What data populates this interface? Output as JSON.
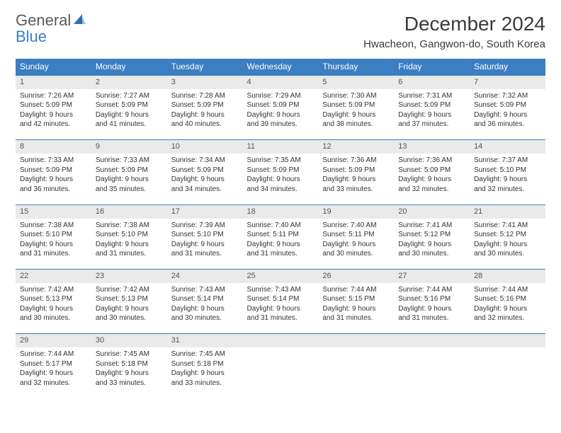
{
  "brand": {
    "text_general": "General",
    "text_blue": "Blue",
    "icon_color": "#2e6db0"
  },
  "header": {
    "month_title": "December 2024",
    "location": "Hwacheon, Gangwon-do, South Korea"
  },
  "style": {
    "header_bg": "#3b7ec2",
    "header_text": "#ffffff",
    "daynum_bg": "#e9eaea",
    "border_color": "#3b7ec2",
    "body_text": "#333333",
    "font_size_body": 10,
    "font_size_daynum": 11,
    "font_size_header": 12
  },
  "weekdays": [
    "Sunday",
    "Monday",
    "Tuesday",
    "Wednesday",
    "Thursday",
    "Friday",
    "Saturday"
  ],
  "days": {
    "1": {
      "sunrise": "7:26 AM",
      "sunset": "5:09 PM",
      "daylight": "9 hours and 42 minutes."
    },
    "2": {
      "sunrise": "7:27 AM",
      "sunset": "5:09 PM",
      "daylight": "9 hours and 41 minutes."
    },
    "3": {
      "sunrise": "7:28 AM",
      "sunset": "5:09 PM",
      "daylight": "9 hours and 40 minutes."
    },
    "4": {
      "sunrise": "7:29 AM",
      "sunset": "5:09 PM",
      "daylight": "9 hours and 39 minutes."
    },
    "5": {
      "sunrise": "7:30 AM",
      "sunset": "5:09 PM",
      "daylight": "9 hours and 38 minutes."
    },
    "6": {
      "sunrise": "7:31 AM",
      "sunset": "5:09 PM",
      "daylight": "9 hours and 37 minutes."
    },
    "7": {
      "sunrise": "7:32 AM",
      "sunset": "5:09 PM",
      "daylight": "9 hours and 36 minutes."
    },
    "8": {
      "sunrise": "7:33 AM",
      "sunset": "5:09 PM",
      "daylight": "9 hours and 36 minutes."
    },
    "9": {
      "sunrise": "7:33 AM",
      "sunset": "5:09 PM",
      "daylight": "9 hours and 35 minutes."
    },
    "10": {
      "sunrise": "7:34 AM",
      "sunset": "5:09 PM",
      "daylight": "9 hours and 34 minutes."
    },
    "11": {
      "sunrise": "7:35 AM",
      "sunset": "5:09 PM",
      "daylight": "9 hours and 34 minutes."
    },
    "12": {
      "sunrise": "7:36 AM",
      "sunset": "5:09 PM",
      "daylight": "9 hours and 33 minutes."
    },
    "13": {
      "sunrise": "7:36 AM",
      "sunset": "5:09 PM",
      "daylight": "9 hours and 32 minutes."
    },
    "14": {
      "sunrise": "7:37 AM",
      "sunset": "5:10 PM",
      "daylight": "9 hours and 32 minutes."
    },
    "15": {
      "sunrise": "7:38 AM",
      "sunset": "5:10 PM",
      "daylight": "9 hours and 31 minutes."
    },
    "16": {
      "sunrise": "7:38 AM",
      "sunset": "5:10 PM",
      "daylight": "9 hours and 31 minutes."
    },
    "17": {
      "sunrise": "7:39 AM",
      "sunset": "5:10 PM",
      "daylight": "9 hours and 31 minutes."
    },
    "18": {
      "sunrise": "7:40 AM",
      "sunset": "5:11 PM",
      "daylight": "9 hours and 31 minutes."
    },
    "19": {
      "sunrise": "7:40 AM",
      "sunset": "5:11 PM",
      "daylight": "9 hours and 30 minutes."
    },
    "20": {
      "sunrise": "7:41 AM",
      "sunset": "5:12 PM",
      "daylight": "9 hours and 30 minutes."
    },
    "21": {
      "sunrise": "7:41 AM",
      "sunset": "5:12 PM",
      "daylight": "9 hours and 30 minutes."
    },
    "22": {
      "sunrise": "7:42 AM",
      "sunset": "5:13 PM",
      "daylight": "9 hours and 30 minutes."
    },
    "23": {
      "sunrise": "7:42 AM",
      "sunset": "5:13 PM",
      "daylight": "9 hours and 30 minutes."
    },
    "24": {
      "sunrise": "7:43 AM",
      "sunset": "5:14 PM",
      "daylight": "9 hours and 30 minutes."
    },
    "25": {
      "sunrise": "7:43 AM",
      "sunset": "5:14 PM",
      "daylight": "9 hours and 31 minutes."
    },
    "26": {
      "sunrise": "7:44 AM",
      "sunset": "5:15 PM",
      "daylight": "9 hours and 31 minutes."
    },
    "27": {
      "sunrise": "7:44 AM",
      "sunset": "5:16 PM",
      "daylight": "9 hours and 31 minutes."
    },
    "28": {
      "sunrise": "7:44 AM",
      "sunset": "5:16 PM",
      "daylight": "9 hours and 32 minutes."
    },
    "29": {
      "sunrise": "7:44 AM",
      "sunset": "5:17 PM",
      "daylight": "9 hours and 32 minutes."
    },
    "30": {
      "sunrise": "7:45 AM",
      "sunset": "5:18 PM",
      "daylight": "9 hours and 33 minutes."
    },
    "31": {
      "sunrise": "7:45 AM",
      "sunset": "5:18 PM",
      "daylight": "9 hours and 33 minutes."
    }
  },
  "labels": {
    "sunrise": "Sunrise:",
    "sunset": "Sunset:",
    "daylight": "Daylight:"
  },
  "layout": {
    "weeks": [
      [
        1,
        2,
        3,
        4,
        5,
        6,
        7
      ],
      [
        8,
        9,
        10,
        11,
        12,
        13,
        14
      ],
      [
        15,
        16,
        17,
        18,
        19,
        20,
        21
      ],
      [
        22,
        23,
        24,
        25,
        26,
        27,
        28
      ],
      [
        29,
        30,
        31,
        null,
        null,
        null,
        null
      ]
    ]
  }
}
